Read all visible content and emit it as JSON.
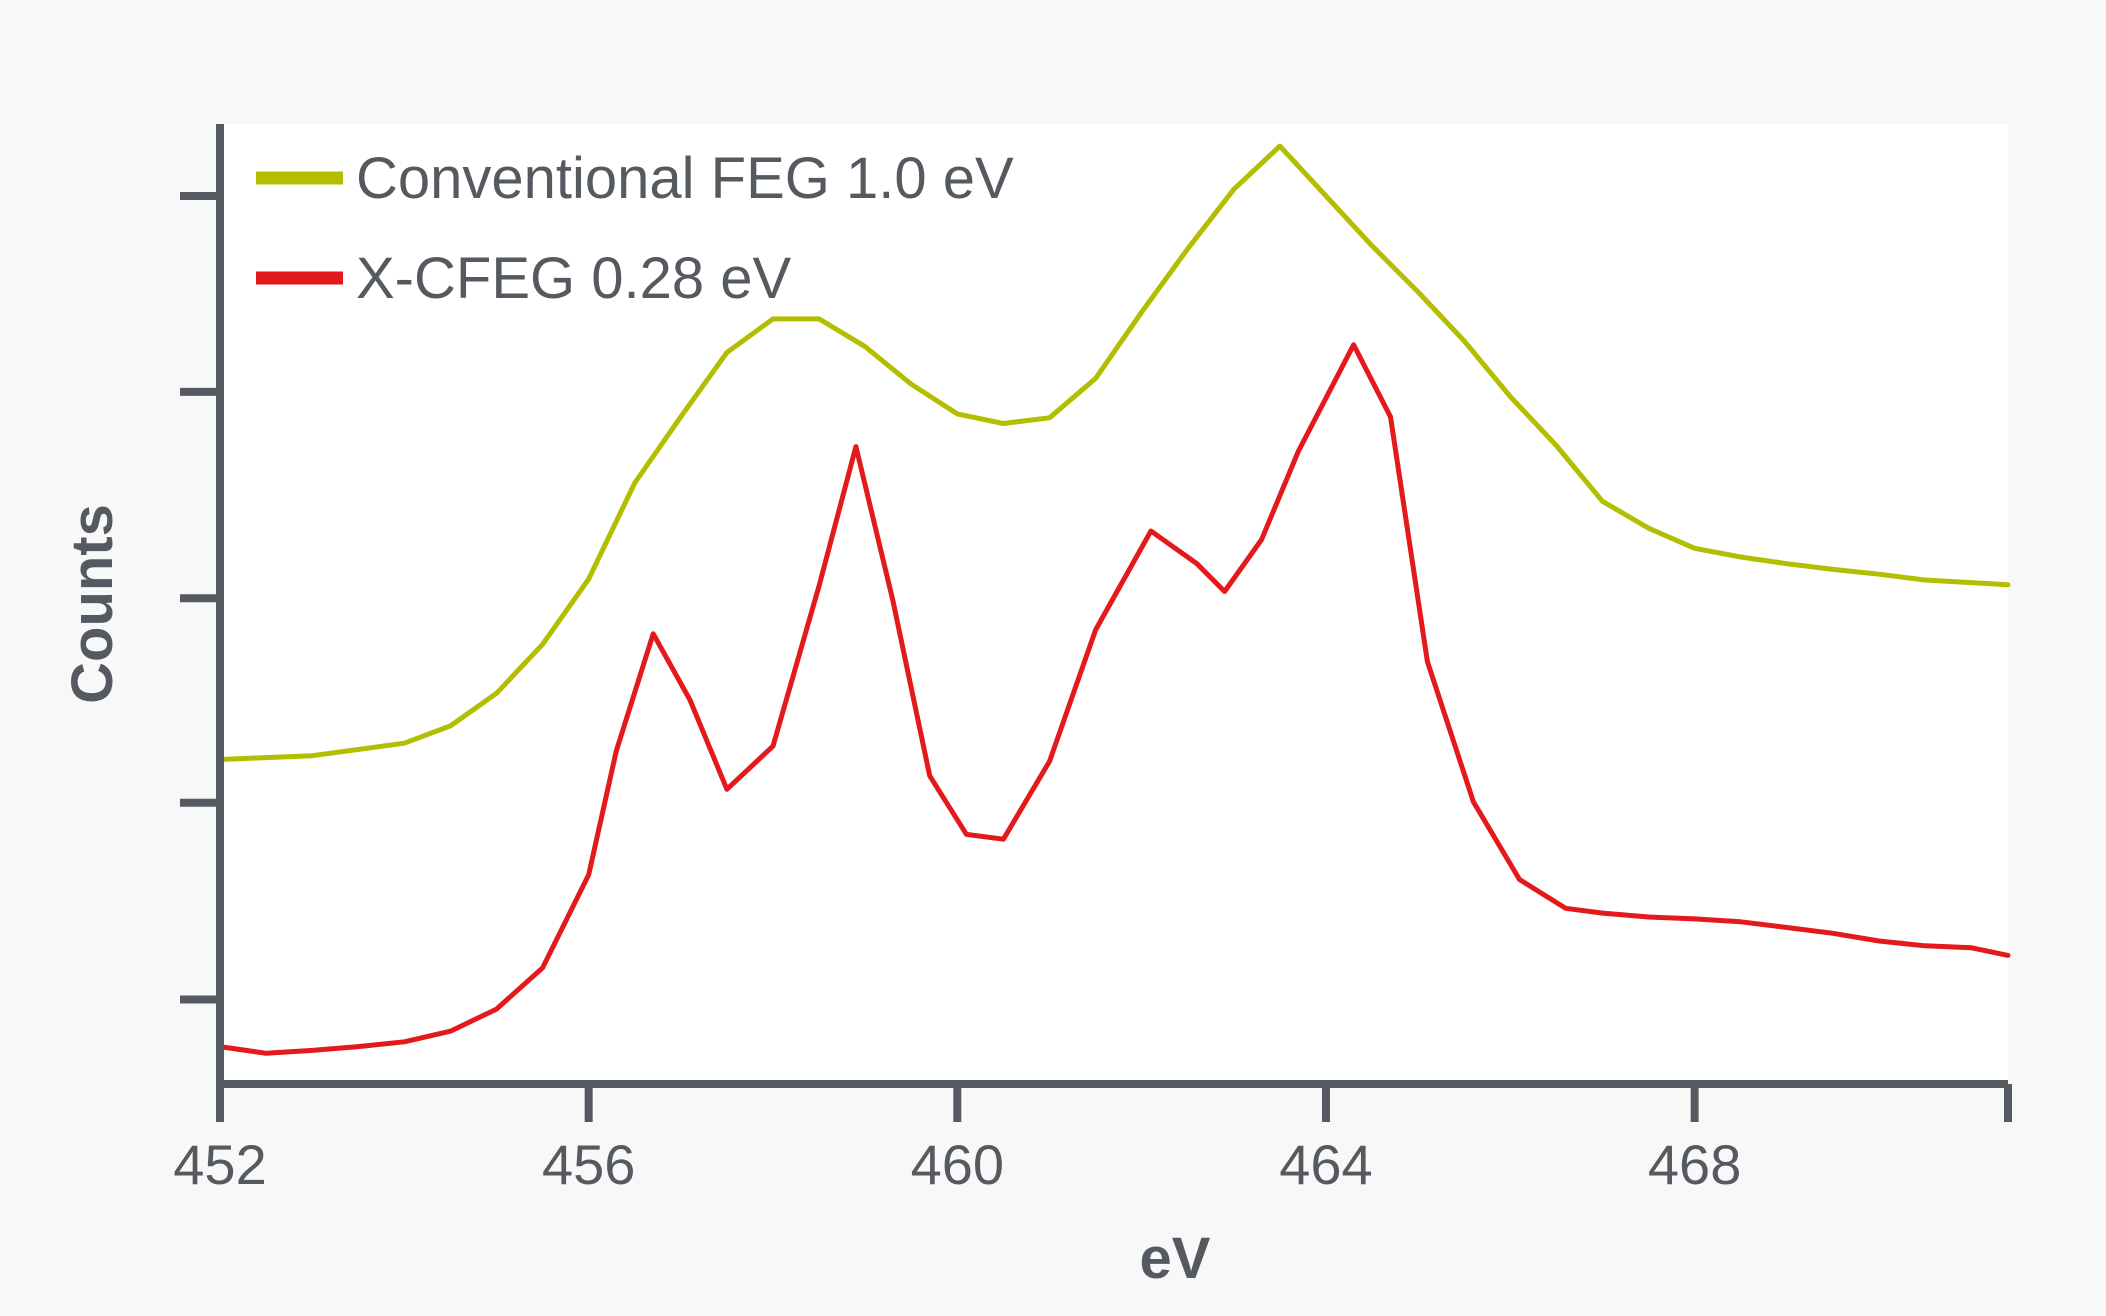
{
  "chart_data": {
    "type": "line",
    "xlabel": "eV",
    "ylabel": "Counts",
    "xlim": [
      452,
      471.4
    ],
    "ylim": [
      0,
      100
    ],
    "x_ticks": [
      452,
      456,
      460,
      464,
      468
    ],
    "x_tick_labels": [
      "452",
      "456",
      "460",
      "464",
      "468"
    ],
    "y_tick_values": [
      8.8,
      29.3,
      50.6,
      72.1,
      92.5
    ],
    "grid": false,
    "legend_position": "top-left",
    "series": [
      {
        "name": "Conventional FEG 1.0 eV",
        "color": "#b3be00",
        "x": [
          452,
          453,
          454,
          454.5,
          455,
          455.5,
          456,
          456.5,
          457,
          457.5,
          458,
          458.5,
          459,
          459.5,
          460,
          460.5,
          461,
          461.5,
          462,
          462.5,
          463,
          463.5,
          464,
          464.5,
          465,
          465.5,
          466,
          466.5,
          467,
          467.5,
          468,
          468.5,
          469,
          469.5,
          470,
          470.5,
          471.4
        ],
        "y": [
          33.8,
          34.2,
          35.5,
          37.3,
          40.7,
          45.8,
          52.6,
          62.6,
          69.5,
          76.2,
          79.7,
          79.7,
          76.8,
          72.9,
          69.8,
          68.8,
          69.4,
          73.5,
          80.4,
          87.0,
          93.2,
          97.7,
          92.5,
          87.3,
          82.5,
          77.4,
          71.6,
          66.5,
          60.7,
          57.9,
          55.8,
          54.9,
          54.2,
          53.6,
          53.1,
          52.5,
          52.0
        ]
      },
      {
        "name": "X-CFEG 0.28 eV",
        "color": "#e3191c",
        "x": [
          452,
          452.5,
          453,
          453.5,
          454,
          454.5,
          455,
          455.5,
          456,
          456.3,
          456.7,
          457.1,
          457.5,
          458,
          458.5,
          458.9,
          459.3,
          459.7,
          460.1,
          460.5,
          461,
          461.5,
          462.1,
          462.6,
          462.9,
          463.3,
          463.7,
          464.3,
          464.7,
          465.1,
          465.6,
          466.1,
          466.6,
          467,
          467.5,
          468,
          468.5,
          469,
          469.5,
          470,
          470.5,
          471,
          471.4
        ],
        "y": [
          3.9,
          3.2,
          3.5,
          3.9,
          4.4,
          5.5,
          7.8,
          12.1,
          21.8,
          34.7,
          46.9,
          40.0,
          30.7,
          35.2,
          51.9,
          66.4,
          50.4,
          32.1,
          26.0,
          25.5,
          33.6,
          47.3,
          57.6,
          54.2,
          51.3,
          56.7,
          65.9,
          77.0,
          69.5,
          44.0,
          29.4,
          21.3,
          18.3,
          17.8,
          17.4,
          17.2,
          16.9,
          16.3,
          15.7,
          14.9,
          14.4,
          14.2,
          13.4
        ]
      }
    ]
  }
}
